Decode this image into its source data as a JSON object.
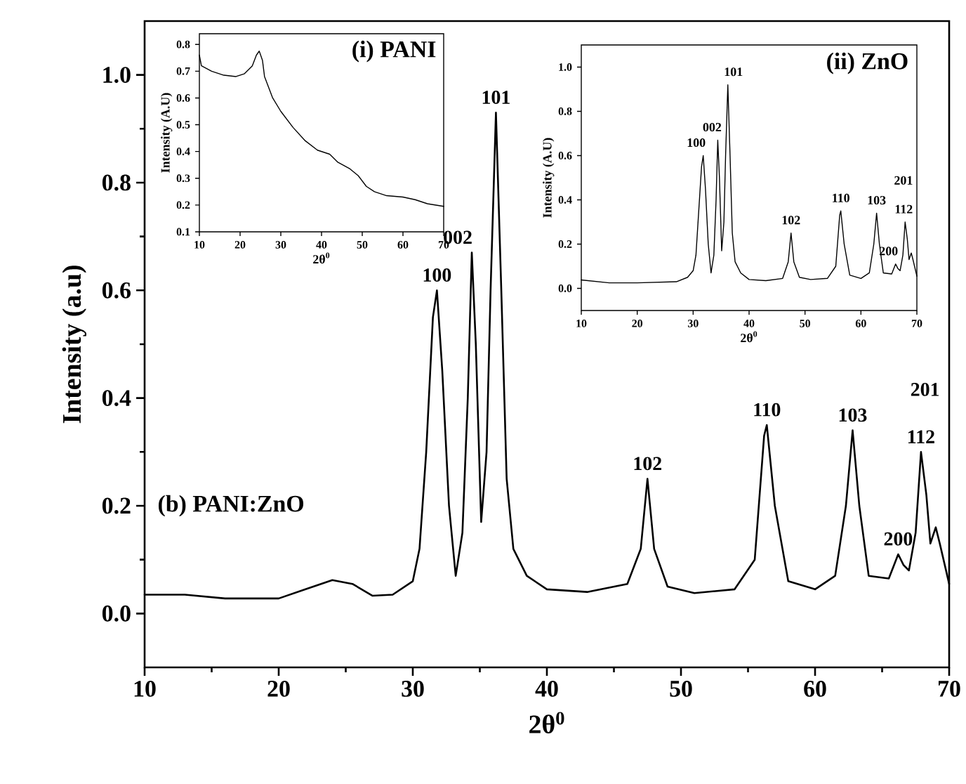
{
  "chart_data": [
    {
      "type": "line",
      "xlabel": "2θ$^{0}$",
      "ylabel": "Intensity (a.u)",
      "xlim": [
        10,
        70
      ],
      "ylim": [
        -0.1,
        1.1
      ],
      "xticks": [
        10,
        20,
        30,
        40,
        50,
        60,
        70
      ],
      "yticks": [
        {
          "value": 0,
          "label": "0.0"
        },
        {
          "value": 0.2,
          "label": "0.2"
        },
        {
          "value": 0.4,
          "label": "0.4"
        },
        {
          "value": 0.6,
          "label": "0.6"
        },
        {
          "value": 0.8,
          "label": "0.8"
        },
        {
          "value": 1.0,
          "label": "1.0"
        }
      ],
      "series": [
        {
          "color": "#000000",
          "x": [
            10,
            13,
            16,
            20,
            22,
            24,
            25.5,
            27,
            28.5,
            30,
            30.5,
            31,
            31.5,
            31.8,
            32.2,
            32.7,
            33.2,
            33.7,
            34.1,
            34.4,
            34.7,
            35.1,
            35.5,
            35.8,
            36.2,
            36.6,
            37,
            37.5,
            38.5,
            40,
            43,
            46,
            47,
            47.5,
            48,
            49,
            51,
            54,
            55.5,
            56.2,
            56.4,
            57,
            58,
            60,
            61.5,
            62.3,
            62.8,
            63.3,
            64,
            65.5,
            66.2,
            66.6,
            67,
            67.5,
            67.9,
            68.3,
            68.6,
            69,
            69.3,
            70
          ],
          "values": [
            0.035,
            0.035,
            0.028,
            0.028,
            0.045,
            0.062,
            0.055,
            0.033,
            0.035,
            0.06,
            0.12,
            0.3,
            0.55,
            0.6,
            0.45,
            0.2,
            0.07,
            0.15,
            0.4,
            0.67,
            0.5,
            0.17,
            0.3,
            0.6,
            0.93,
            0.6,
            0.25,
            0.12,
            0.07,
            0.045,
            0.04,
            0.055,
            0.12,
            0.25,
            0.12,
            0.05,
            0.038,
            0.045,
            0.1,
            0.33,
            0.35,
            0.2,
            0.06,
            0.045,
            0.07,
            0.2,
            0.34,
            0.2,
            0.07,
            0.065,
            0.11,
            0.09,
            0.08,
            0.15,
            0.3,
            0.22,
            0.13,
            0.16,
            0.13,
            0.055
          ]
        }
      ],
      "annotations": [
        "(b) PANI:ZnO",
        {
          "text": "100",
          "x": 31.8,
          "y": 0.6
        },
        {
          "text": "002",
          "x": 34.4,
          "y": 0.67
        },
        {
          "text": "101",
          "x": 36.2,
          "y": 0.93
        },
        {
          "text": "102",
          "x": 47.5,
          "y": 0.25
        },
        {
          "text": "110",
          "x": 56.4,
          "y": 0.35
        },
        {
          "text": "103",
          "x": 62.8,
          "y": 0.34
        },
        {
          "text": "200",
          "x": 66.2,
          "y": 0.11
        },
        {
          "text": "112",
          "x": 67.9,
          "y": 0.3
        },
        "201"
      ]
    },
    {
      "type": "line",
      "title": "(i) PANI",
      "xlabel": "2θ$^{0}$",
      "ylabel": "Intensity (A.U)",
      "xlim": [
        10,
        70
      ],
      "ylim": [
        0.1,
        0.84
      ],
      "xticks": [
        10,
        20,
        30,
        40,
        50,
        60,
        70
      ],
      "yticks": [
        0.1,
        0.2,
        0.3,
        0.4,
        0.5,
        0.6,
        0.7,
        0.8
      ],
      "series": [
        {
          "color": "#000000",
          "x": [
            10,
            10.5,
            13,
            16,
            19,
            21,
            23,
            24,
            24.7,
            25.5,
            26,
            28,
            30,
            33,
            36,
            39,
            42,
            44,
            47,
            49,
            51,
            53,
            56,
            60,
            63,
            66,
            70
          ],
          "values": [
            0.76,
            0.72,
            0.7,
            0.685,
            0.68,
            0.69,
            0.72,
            0.76,
            0.775,
            0.74,
            0.68,
            0.6,
            0.55,
            0.49,
            0.44,
            0.405,
            0.39,
            0.36,
            0.335,
            0.31,
            0.27,
            0.25,
            0.235,
            0.23,
            0.22,
            0.205,
            0.195
          ]
        }
      ]
    },
    {
      "type": "line",
      "title": "(ii) ZnO",
      "xlabel": "2θ$^{0}$",
      "ylabel": "Intensity (A.U)",
      "xlim": [
        10,
        70
      ],
      "ylim": [
        -0.1,
        1.1
      ],
      "xticks": [
        10,
        20,
        30,
        40,
        50,
        60,
        70
      ],
      "yticks": [
        {
          "value": 0,
          "label": "0.0"
        },
        {
          "value": 0.2,
          "label": "0.2"
        },
        {
          "value": 0.4,
          "label": "0.4"
        },
        {
          "value": 0.6,
          "label": "0.6"
        },
        {
          "value": 0.8,
          "label": "0.8"
        },
        {
          "value": 1.0,
          "label": "1.0"
        }
      ],
      "series": [
        {
          "color": "#000000",
          "x": [
            10,
            15,
            20,
            27,
            29,
            30,
            30.5,
            31,
            31.5,
            31.8,
            32.2,
            32.7,
            33.2,
            33.7,
            34.1,
            34.4,
            34.7,
            35.1,
            35.5,
            35.8,
            36.2,
            36.6,
            37,
            37.5,
            38.5,
            40,
            43,
            46,
            47,
            47.5,
            48,
            49,
            51,
            54,
            55.5,
            56.2,
            56.4,
            57,
            58,
            60,
            61.5,
            62.3,
            62.8,
            63.3,
            64,
            65.5,
            66.2,
            66.6,
            67,
            67.5,
            67.9,
            68.3,
            68.6,
            69,
            69.3,
            70
          ],
          "values": [
            0.038,
            0.025,
            0.025,
            0.03,
            0.05,
            0.08,
            0.15,
            0.35,
            0.55,
            0.6,
            0.45,
            0.2,
            0.07,
            0.15,
            0.4,
            0.67,
            0.5,
            0.17,
            0.3,
            0.6,
            0.92,
            0.6,
            0.25,
            0.12,
            0.07,
            0.04,
            0.035,
            0.045,
            0.12,
            0.25,
            0.12,
            0.05,
            0.04,
            0.045,
            0.1,
            0.33,
            0.35,
            0.2,
            0.06,
            0.045,
            0.07,
            0.2,
            0.34,
            0.2,
            0.07,
            0.065,
            0.11,
            0.09,
            0.08,
            0.15,
            0.3,
            0.22,
            0.13,
            0.16,
            0.13,
            0.055
          ]
        }
      ],
      "annotations": [
        {
          "text": "100",
          "x": 31.8,
          "y": 0.6
        },
        {
          "text": "002",
          "x": 34.4,
          "y": 0.67
        },
        {
          "text": "101",
          "x": 36.2,
          "y": 0.92
        },
        {
          "text": "102",
          "x": 47.5,
          "y": 0.25
        },
        {
          "text": "110",
          "x": 56.4,
          "y": 0.35
        },
        {
          "text": "103",
          "x": 62.8,
          "y": 0.34
        },
        {
          "text": "200",
          "x": 66.2,
          "y": 0.11
        },
        {
          "text": "112",
          "x": 67.9,
          "y": 0.3
        },
        "201"
      ]
    }
  ]
}
